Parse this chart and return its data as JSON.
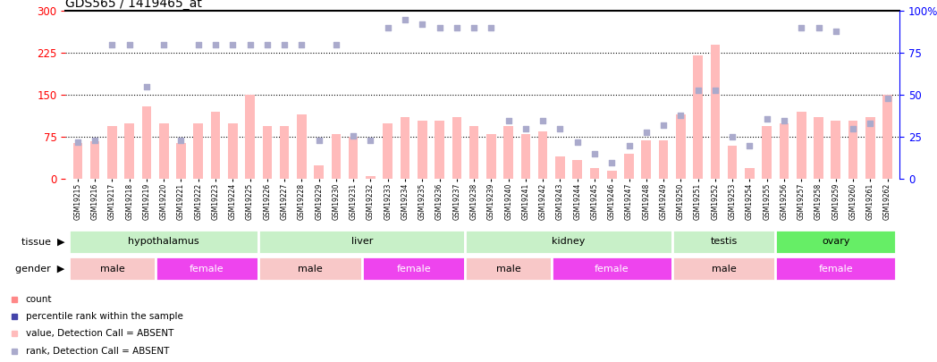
{
  "title": "GDS565 / 1419465_at",
  "samples": [
    "GSM19215",
    "GSM19216",
    "GSM19217",
    "GSM19218",
    "GSM19219",
    "GSM19220",
    "GSM19221",
    "GSM19222",
    "GSM19223",
    "GSM19224",
    "GSM19225",
    "GSM19226",
    "GSM19227",
    "GSM19228",
    "GSM19229",
    "GSM19230",
    "GSM19231",
    "GSM19232",
    "GSM19233",
    "GSM19234",
    "GSM19235",
    "GSM19236",
    "GSM19237",
    "GSM19238",
    "GSM19239",
    "GSM19240",
    "GSM19241",
    "GSM19242",
    "GSM19243",
    "GSM19244",
    "GSM19245",
    "GSM19246",
    "GSM19247",
    "GSM19248",
    "GSM19249",
    "GSM19250",
    "GSM19251",
    "GSM19252",
    "GSM19253",
    "GSM19254",
    "GSM19255",
    "GSM19256",
    "GSM19257",
    "GSM19258",
    "GSM19259",
    "GSM19260",
    "GSM19261",
    "GSM19262"
  ],
  "values": [
    65,
    68,
    95,
    100,
    130,
    100,
    65,
    100,
    120,
    100,
    150,
    95,
    95,
    115,
    25,
    80,
    75,
    5,
    100,
    110,
    105,
    105,
    110,
    95,
    80,
    95,
    80,
    85,
    40,
    35,
    20,
    15,
    45,
    70,
    70,
    115,
    220,
    240,
    60,
    20,
    95,
    100,
    120,
    110,
    105,
    105,
    110,
    150
  ],
  "ranks": [
    22,
    23,
    80,
    80,
    55,
    80,
    23,
    80,
    80,
    80,
    80,
    80,
    80,
    80,
    23,
    80,
    26,
    23,
    90,
    95,
    92,
    90,
    90,
    90,
    90,
    35,
    30,
    35,
    30,
    22,
    15,
    10,
    20,
    28,
    32,
    38,
    53,
    53,
    25,
    20,
    36,
    35,
    90,
    90,
    88,
    30,
    33,
    48
  ],
  "tissues": [
    {
      "label": "hypothalamus",
      "start": 0,
      "end": 11,
      "color": "#C8F0C8"
    },
    {
      "label": "liver",
      "start": 11,
      "end": 23,
      "color": "#C8F0C8"
    },
    {
      "label": "kidney",
      "start": 23,
      "end": 35,
      "color": "#C8F0C8"
    },
    {
      "label": "testis",
      "start": 35,
      "end": 41,
      "color": "#C8F0C8"
    },
    {
      "label": "ovary",
      "start": 41,
      "end": 48,
      "color": "#66EE66"
    }
  ],
  "genders": [
    {
      "label": "male",
      "start": 0,
      "end": 5,
      "color": "#F8C8C8"
    },
    {
      "label": "female",
      "start": 5,
      "end": 11,
      "color": "#EE44EE"
    },
    {
      "label": "male",
      "start": 11,
      "end": 17,
      "color": "#F8C8C8"
    },
    {
      "label": "female",
      "start": 17,
      "end": 23,
      "color": "#EE44EE"
    },
    {
      "label": "male",
      "start": 23,
      "end": 28,
      "color": "#F8C8C8"
    },
    {
      "label": "female",
      "start": 28,
      "end": 35,
      "color": "#EE44EE"
    },
    {
      "label": "male",
      "start": 35,
      "end": 41,
      "color": "#F8C8C8"
    },
    {
      "label": "female",
      "start": 41,
      "end": 48,
      "color": "#EE44EE"
    }
  ],
  "bar_color": "#FF8888",
  "rank_color": "#4444AA",
  "absent_bar_color": "#FFBBBB",
  "absent_rank_color": "#AAAACC",
  "left_ylim": [
    0,
    300
  ],
  "right_ylim": [
    0,
    100
  ],
  "left_yticks": [
    0,
    75,
    150,
    225,
    300
  ],
  "right_yticks": [
    0,
    25,
    50,
    75,
    100
  ],
  "hline_values": [
    75,
    150,
    225
  ],
  "legend_items": [
    {
      "color": "#FF8888",
      "label": "count"
    },
    {
      "color": "#4444AA",
      "label": "percentile rank within the sample"
    },
    {
      "color": "#FFBBBB",
      "label": "value, Detection Call = ABSENT"
    },
    {
      "color": "#AAAACC",
      "label": "rank, Detection Call = ABSENT"
    }
  ]
}
